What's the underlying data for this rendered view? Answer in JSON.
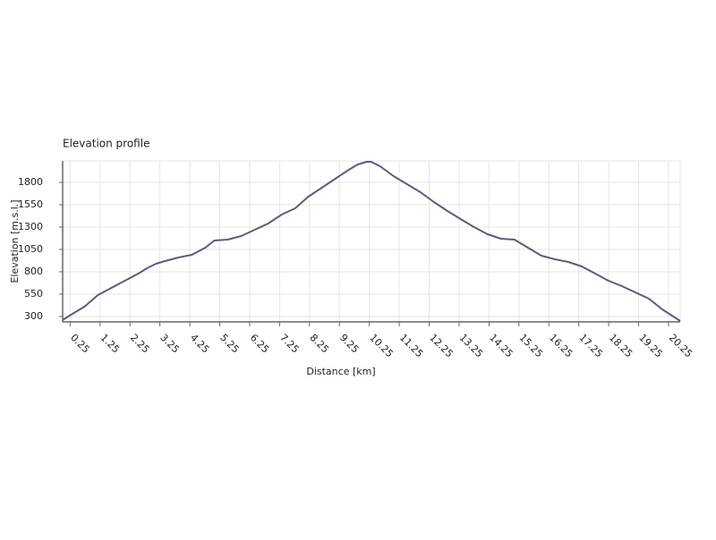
{
  "chart_data": {
    "type": "line",
    "title": "Elevation profile",
    "x_label": "Distance [km]",
    "y_label": "Elevation [m.s.l.]",
    "x": [
      0,
      0.28,
      0.73,
      1.18,
      1.63,
      2.08,
      2.53,
      2.82,
      3.12,
      3.42,
      3.87,
      4.32,
      4.77,
      5.07,
      5.52,
      5.97,
      6.42,
      6.87,
      7.32,
      7.77,
      8.21,
      8.66,
      9.11,
      9.56,
      9.86,
      10.16,
      10.31,
      10.61,
      11.06,
      11.51,
      11.96,
      12.41,
      12.86,
      13.3,
      13.75,
      14.2,
      14.65,
      15.1,
      15.55,
      16.0,
      16.45,
      16.9,
      17.35,
      17.8,
      18.24,
      18.69,
      19.14,
      19.59,
      20.04,
      20.64
    ],
    "series": [
      {
        "color": "#5c5c7e",
        "values": [
          260,
          320,
          410,
          540,
          620,
          700,
          780,
          840,
          890,
          920,
          960,
          990,
          1070,
          1150,
          1160,
          1200,
          1270,
          1340,
          1440,
          1510,
          1640,
          1740,
          1840,
          1940,
          2000,
          2030,
          2030,
          1980,
          1870,
          1780,
          1690,
          1580,
          1480,
          1390,
          1300,
          1220,
          1170,
          1160,
          1070,
          980,
          940,
          910,
          860,
          780,
          700,
          640,
          570,
          500,
          380,
          250
        ]
      }
    ],
    "xlim": [
      0,
      20.64
    ],
    "ylim": [
      240,
      2040
    ],
    "xticks": [
      0.25,
      1.25,
      2.25,
      3.25,
      4.25,
      5.25,
      6.25,
      7.25,
      8.25,
      9.25,
      10.25,
      11.25,
      12.25,
      13.25,
      14.25,
      15.25,
      16.25,
      17.25,
      18.25,
      19.25,
      20.25
    ],
    "yticks": [
      300,
      550,
      800,
      1050,
      1300,
      1550,
      1800
    ],
    "grid": true
  }
}
